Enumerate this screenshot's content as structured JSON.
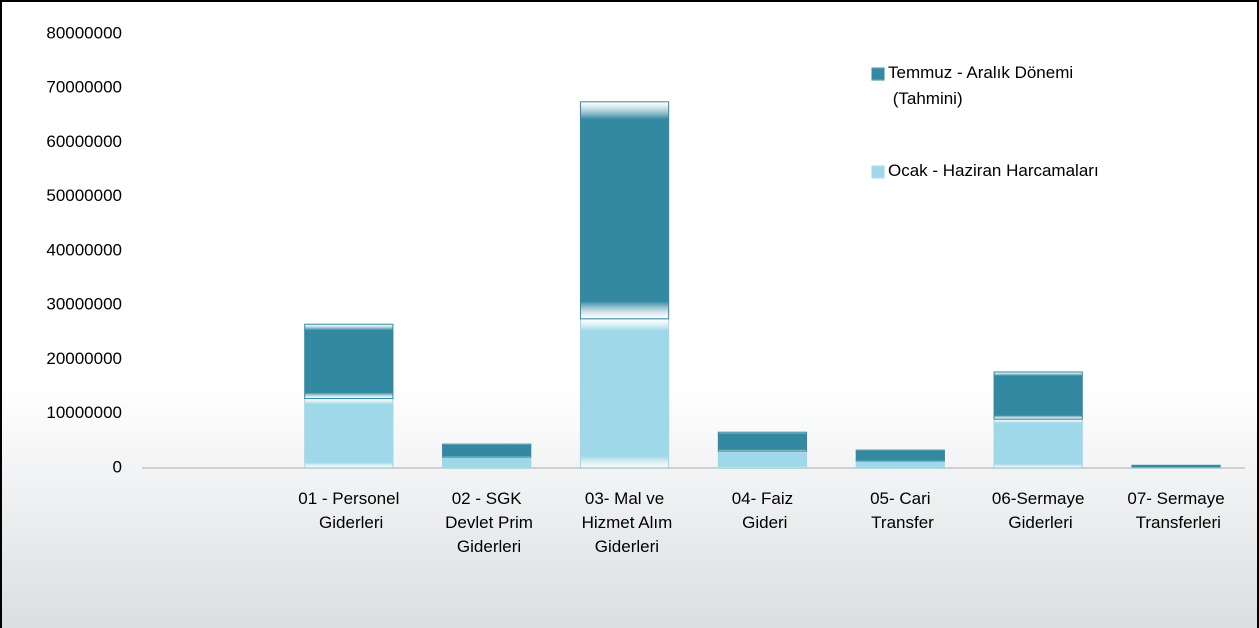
{
  "chart_data": {
    "type": "stacked_bar",
    "categories": [
      null,
      "01 - Personel Giderleri",
      "02 - SGK Devlet Prim Giderleri",
      "03- Mal ve Hizmet Alım Giderleri",
      "04- Faiz Gideri",
      "05- Cari Transfer",
      "06-Sermaye Giderleri",
      "07- Sermaye Transferleri"
    ],
    "series": [
      {
        "name": "Ocak - Haziran Harcamaları",
        "color": "#9fd8e8",
        "values": [
          null,
          12800000,
          2000000,
          27500000,
          3100000,
          1300000,
          9000000,
          200000
        ]
      },
      {
        "name": "Temmuz - Aralık Dönemi (Tahmini)",
        "color": "#3489a2",
        "values": [
          null,
          13700000,
          2400000,
          40000000,
          3500000,
          2000000,
          8700000,
          300000
        ]
      }
    ],
    "ylim": [
      0,
      80000000
    ],
    "yticks": [
      0,
      10000000,
      20000000,
      30000000,
      40000000,
      50000000,
      60000000,
      70000000,
      80000000
    ],
    "grid": false,
    "legend": "top-right"
  }
}
